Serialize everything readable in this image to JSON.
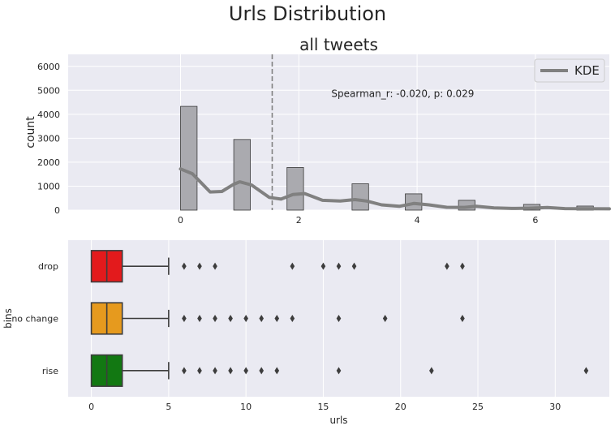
{
  "suptitle": "Urls Distribution",
  "chart_data": [
    {
      "type": "bar",
      "title": "all tweets",
      "ylabel": "count",
      "xlabel": "",
      "xlim": [
        -1.9,
        7.25
      ],
      "ylim": [
        0,
        6500
      ],
      "xticks": [
        0,
        2,
        4,
        6
      ],
      "yticks": [
        0,
        1000,
        2000,
        3000,
        4000,
        5000,
        6000
      ],
      "bar_width": 0.28,
      "bars": [
        {
          "x": 0.14,
          "value": 4330
        },
        {
          "x": 1.04,
          "value": 2950
        },
        {
          "x": 1.94,
          "value": 1780
        },
        {
          "x": 3.04,
          "value": 1100
        },
        {
          "x": 3.94,
          "value": 680
        },
        {
          "x": 4.84,
          "value": 410
        },
        {
          "x": 5.94,
          "value": 240
        },
        {
          "x": 6.84,
          "value": 170
        }
      ],
      "vline": {
        "x": 1.55,
        "style": "dashed"
      },
      "kde": {
        "x": [
          0,
          0.2,
          0.5,
          0.7,
          0.9,
          1.0,
          1.2,
          1.5,
          1.7,
          1.9,
          2.1,
          2.4,
          2.7,
          2.95,
          3.15,
          3.4,
          3.7,
          3.95,
          4.2,
          4.5,
          4.8,
          5.0,
          5.3,
          5.6,
          5.9,
          6.2,
          6.5,
          6.8,
          7.25
        ],
        "y": [
          1720,
          1520,
          760,
          780,
          1080,
          1180,
          1050,
          530,
          460,
          650,
          690,
          410,
          380,
          440,
          380,
          220,
          160,
          280,
          220,
          120,
          115,
          160,
          90,
          70,
          80,
          110,
          65,
          60,
          55
        ]
      },
      "legend": {
        "entries": [
          "KDE"
        ],
        "placement": "upper right"
      },
      "annotation": "Spearman_r: -0.020, p: 0.029",
      "colors": {
        "bars": "#aaaaaf",
        "bar_edge": "#3a3a3a",
        "kde": "#808080",
        "vline": "#808080"
      }
    },
    {
      "type": "boxplot",
      "xlabel": "urls",
      "ylabel": "bins",
      "xlim": [
        -1.5,
        33.5
      ],
      "xticks": [
        0,
        5,
        10,
        15,
        20,
        25,
        30
      ],
      "categories": [
        "drop",
        "no change",
        "rise"
      ],
      "boxes": [
        {
          "name": "drop",
          "q1": 0,
          "median": 1,
          "q3": 2,
          "whisker_low": 0,
          "whisker_high": 5,
          "outliers": [
            6,
            7,
            8,
            13,
            15,
            16,
            17,
            23,
            24
          ],
          "color": "#e31a1c"
        },
        {
          "name": "no change",
          "q1": 0,
          "median": 1,
          "q3": 2,
          "whisker_low": 0,
          "whisker_high": 5,
          "outliers": [
            6,
            7,
            8,
            9,
            10,
            11,
            12,
            13,
            16,
            19,
            24
          ],
          "color": "#e69a1e"
        },
        {
          "name": "rise",
          "q1": 0,
          "median": 1,
          "q3": 2,
          "whisker_low": 0,
          "whisker_high": 5,
          "outliers": [
            6,
            7,
            8,
            9,
            10,
            11,
            12,
            16,
            22,
            32
          ],
          "color": "#127812"
        }
      ]
    }
  ]
}
